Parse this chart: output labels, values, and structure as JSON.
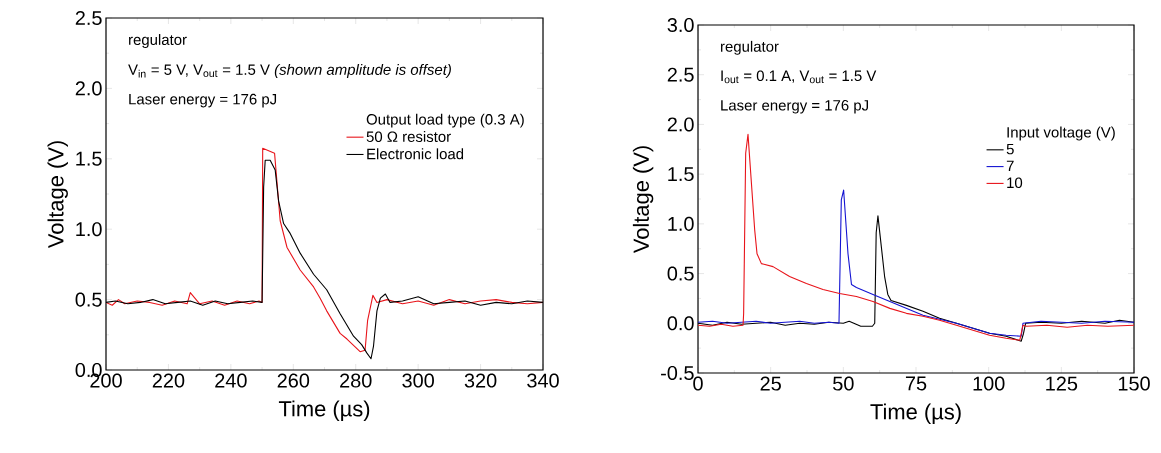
{
  "chart_data": [
    {
      "type": "line",
      "xlabel": "Time (µs)",
      "ylabel": "Voltage (V)",
      "annotations": [
        "regulator",
        "V$_{in}$ = 5 V, V$_{out}$ = 1.5 V *(shown amplitude is offset)*",
        "Laser energy = 176 pJ"
      ],
      "legend_title": "Output load type (0.3 A)",
      "legend": "top right",
      "xlim": [
        200,
        340
      ],
      "ylim": [
        0,
        2.5
      ],
      "xticks": [
        200,
        220,
        240,
        260,
        280,
        300,
        320,
        340
      ],
      "yticks": [
        {
          "value": 0,
          "label": "0.0"
        },
        0.5,
        {
          "value": 1,
          "label": "1.0"
        },
        1.5,
        {
          "value": 2,
          "label": "2.0"
        },
        2.5
      ],
      "series": [
        {
          "name": "50 Ω resistor",
          "color": "#e8141a",
          "x": [
            200,
            202,
            204,
            206,
            210,
            214,
            218,
            222,
            226,
            227,
            230,
            234,
            238,
            242,
            246,
            249,
            250,
            250.2,
            254,
            255.8,
            258,
            262.2,
            266.5,
            268.6,
            270.7,
            275,
            277.2,
            281.4,
            283,
            283.8,
            285.5,
            286.8,
            290,
            295,
            300,
            305,
            310,
            315,
            320,
            325,
            330,
            335,
            340
          ],
          "values": [
            0.48,
            0.46,
            0.5,
            0.47,
            0.49,
            0.48,
            0.46,
            0.49,
            0.47,
            0.55,
            0.47,
            0.49,
            0.46,
            0.49,
            0.47,
            0.49,
            0.48,
            1.575,
            1.54,
            1.06,
            0.87,
            0.71,
            0.59,
            0.51,
            0.42,
            0.26,
            0.22,
            0.13,
            0.14,
            0.35,
            0.53,
            0.48,
            0.5,
            0.47,
            0.49,
            0.46,
            0.5,
            0.47,
            0.49,
            0.5,
            0.48,
            0.47,
            0.48
          ]
        },
        {
          "name": "Electronic load",
          "color": "#000000",
          "x": [
            200,
            203,
            207,
            211,
            215,
            219,
            223,
            227,
            231,
            235,
            239,
            243,
            247,
            250,
            250.5,
            251,
            252.6,
            254.2,
            255.3,
            256.9,
            259,
            262.2,
            266.5,
            270.7,
            275,
            279.3,
            281.9,
            283.6,
            284.9,
            285.7,
            286.8,
            287.9,
            289.5,
            291,
            295,
            300,
            305,
            310,
            315,
            320,
            325,
            330,
            335,
            340
          ],
          "values": [
            0.48,
            0.49,
            0.47,
            0.48,
            0.5,
            0.47,
            0.48,
            0.49,
            0.46,
            0.49,
            0.47,
            0.48,
            0.49,
            0.48,
            1.3,
            1.49,
            1.49,
            1.42,
            1.2,
            1.04,
            0.97,
            0.83,
            0.68,
            0.57,
            0.4,
            0.24,
            0.18,
            0.12,
            0.08,
            0.17,
            0.42,
            0.51,
            0.54,
            0.48,
            0.49,
            0.52,
            0.47,
            0.48,
            0.49,
            0.46,
            0.48,
            0.47,
            0.49,
            0.48
          ]
        }
      ]
    },
    {
      "type": "line",
      "xlabel": "Time (µs)",
      "ylabel": "Voltage (V)",
      "annotations": [
        "regulator",
        "I$_{out}$ = 0.1 A, V$_{out}$ = 1.5 V",
        "Laser energy = 176 pJ"
      ],
      "legend_title": "Input voltage (V)",
      "legend": "right",
      "xlim": [
        0,
        150
      ],
      "ylim": [
        -0.5,
        3.0
      ],
      "xticks": [
        0,
        25,
        50,
        75,
        100,
        125,
        150
      ],
      "yticks": [
        -0.5,
        {
          "value": 0,
          "label": "0.0"
        },
        0.5,
        {
          "value": 1,
          "label": "1.0"
        },
        1.5,
        {
          "value": 2,
          "label": "2.0"
        },
        2.5,
        {
          "value": 3,
          "label": "3.0"
        }
      ],
      "series": [
        {
          "name": "5",
          "color": "#000000",
          "x": [
            0,
            5,
            10,
            15,
            20,
            25,
            30,
            35,
            40,
            45,
            50,
            52,
            56,
            60,
            60.8,
            61.3,
            61.9,
            64.2,
            65.3,
            66.4,
            71.7,
            77.4,
            83.1,
            88.9,
            94.6,
            100.3,
            106,
            111.2,
            112,
            112.7,
            118,
            125,
            132,
            140,
            145,
            150
          ],
          "values": [
            0.0,
            -0.02,
            0.01,
            -0.01,
            0.0,
            0.01,
            -0.02,
            0.0,
            -0.01,
            0.01,
            0.0,
            0.02,
            -0.03,
            -0.03,
            0.0,
            0.91,
            1.08,
            0.47,
            0.29,
            0.23,
            0.18,
            0.12,
            0.05,
            0.0,
            -0.05,
            -0.1,
            -0.13,
            -0.18,
            -0.1,
            0.0,
            0.01,
            0.0,
            0.02,
            0.0,
            0.03,
            0.01
          ]
        },
        {
          "name": "7",
          "color": "#1414d2",
          "x": [
            0,
            5,
            10,
            15,
            20,
            25,
            30,
            35,
            40,
            45,
            48.5,
            49.3,
            50.1,
            51.6,
            52.8,
            54.5,
            60.2,
            66,
            71.7,
            77.4,
            83.1,
            88.9,
            94.6,
            100.3,
            106,
            111.2,
            111.8,
            118,
            125,
            132,
            140,
            150
          ],
          "values": [
            0.01,
            0.02,
            0.0,
            0.01,
            0.02,
            0.0,
            0.01,
            0.02,
            0.0,
            0.01,
            0.0,
            1.24,
            1.34,
            0.7,
            0.39,
            0.36,
            0.29,
            0.22,
            0.15,
            0.08,
            0.04,
            0.0,
            -0.05,
            -0.1,
            -0.12,
            -0.13,
            0.0,
            0.02,
            0.01,
            0.0,
            0.02,
            0.01
          ]
        },
        {
          "name": "10",
          "color": "#e8141a",
          "x": [
            0,
            4,
            8,
            12,
            15.5,
            15.7,
            16.4,
            17.2,
            19.5,
            20.3,
            21.8,
            25.8,
            31.5,
            37.3,
            43,
            48.7,
            54.5,
            60.2,
            66,
            71.7,
            77.4,
            83.1,
            88.9,
            94.6,
            100.3,
            106,
            110.7,
            111.8,
            113,
            120,
            127,
            134,
            141,
            150
          ],
          "values": [
            -0.02,
            -0.03,
            -0.01,
            -0.03,
            -0.02,
            0.1,
            1.71,
            1.9,
            0.94,
            0.7,
            0.6,
            0.57,
            0.47,
            0.4,
            0.34,
            0.3,
            0.27,
            0.22,
            0.15,
            0.1,
            0.07,
            0.03,
            -0.02,
            -0.07,
            -0.12,
            -0.15,
            -0.17,
            -0.02,
            -0.03,
            -0.02,
            -0.04,
            -0.02,
            -0.03,
            -0.02
          ]
        }
      ]
    }
  ]
}
